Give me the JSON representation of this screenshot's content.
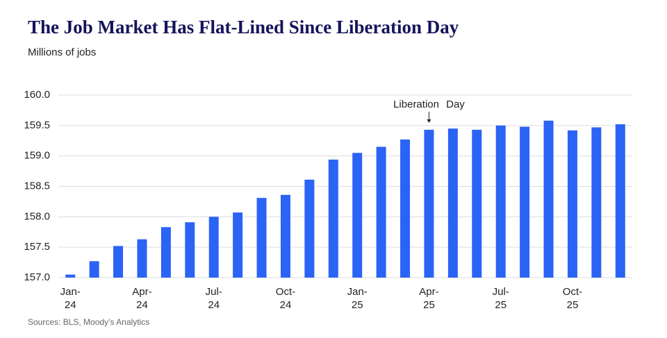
{
  "chart_data": {
    "type": "bar",
    "title": "The Job Market Has Flat-Lined Since Liberation Day",
    "subtitle": "Millions of jobs",
    "source": "Sources: BLS, Moody’s Analytics",
    "categories": [
      "Jan-\n24",
      null,
      null,
      "Apr-\n24",
      null,
      null,
      "Jul-\n24",
      null,
      null,
      "Oct-\n24",
      null,
      null,
      "Jan-\n25",
      null,
      null,
      "Apr-\n25",
      null,
      null,
      "Jul-\n25",
      null,
      null,
      "Oct-\n25",
      null,
      null
    ],
    "values": [
      157.05,
      157.27,
      157.52,
      157.63,
      157.83,
      157.91,
      158.0,
      158.07,
      158.31,
      158.36,
      158.61,
      158.94,
      159.05,
      159.15,
      159.27,
      159.43,
      159.45,
      159.43,
      159.5,
      159.48,
      159.58,
      159.42,
      159.47,
      159.52
    ],
    "color": "#2b63f5",
    "ylim": [
      157.0,
      160.0
    ],
    "yticks": [
      {
        "value": 157,
        "label": "157.0"
      },
      {
        "value": 157.5,
        "label": "157.5"
      },
      {
        "value": 158,
        "label": "158.0"
      },
      {
        "value": 158.5,
        "label": "158.5"
      },
      {
        "value": 159,
        "label": "159.0"
      },
      {
        "value": 159.5,
        "label": "159.5"
      },
      {
        "value": 160,
        "label": "160.0"
      }
    ],
    "grid": true,
    "annotations": [
      {
        "text": "Liberation Day",
        "x": "Apr-\n25"
      }
    ]
  }
}
